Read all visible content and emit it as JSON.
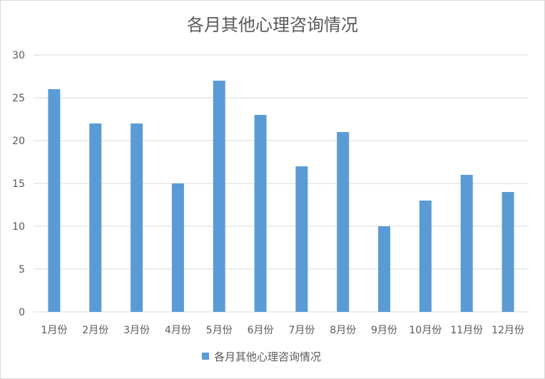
{
  "chart_data": {
    "type": "bar",
    "title": "各月其他心理咨询情况",
    "categories": [
      "1月份",
      "2月份",
      "3月份",
      "4月份",
      "5月份",
      "6月份",
      "7月份",
      "8月份",
      "9月份",
      "10月份",
      "11月份",
      "12月份"
    ],
    "series": [
      {
        "name": "各月其他心理咨询情况",
        "values": [
          26,
          22,
          22,
          15,
          27,
          23,
          17,
          21,
          10,
          13,
          16,
          14
        ]
      }
    ],
    "xlabel": "",
    "ylabel": "",
    "ylim": [
      0,
      30
    ],
    "yticks": [
      0,
      5,
      10,
      15,
      20,
      25,
      30
    ],
    "grid": true,
    "legend_position": "bottom",
    "colors": {
      "bar": "#5b9bd5",
      "grid": "#d9d9d9",
      "text": "#595959"
    }
  }
}
